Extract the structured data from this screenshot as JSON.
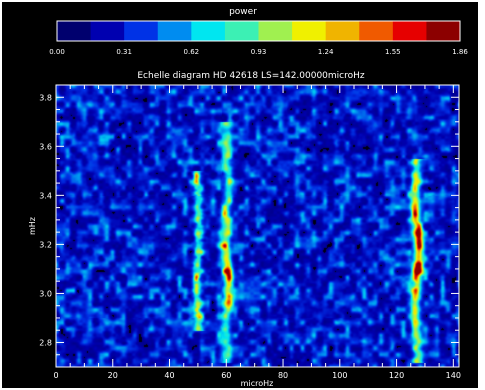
{
  "chart_data": {
    "type": "heatmap",
    "title": "Echelle diagram HD 42618 LS=142.00000microHz",
    "xlabel": "microHz",
    "ylabel": "mHz",
    "xlim": [
      0,
      142
    ],
    "ylim": [
      2.7,
      3.85
    ],
    "x_ticks": [
      "0",
      "20",
      "40",
      "60",
      "80",
      "100",
      "120",
      "140"
    ],
    "y_ticks": [
      "2.8",
      "3.0",
      "3.2",
      "3.4",
      "3.6",
      "3.8"
    ],
    "colorbar": {
      "title": "power",
      "range": [
        0.0,
        1.86
      ],
      "tick_labels": [
        "0.00",
        "0.31",
        "0.62",
        "0.93",
        "1.24",
        "1.55",
        "1.86"
      ],
      "colors": [
        "#00006e",
        "#0000b0",
        "#0032e6",
        "#008cf0",
        "#00e6f0",
        "#3cf0b4",
        "#a0f050",
        "#f0f000",
        "#f0b400",
        "#f05a00",
        "#e60000",
        "#8c0000"
      ]
    },
    "ridges": [
      {
        "x_center": 50,
        "x_width": 1.4,
        "y_range": [
          2.85,
          3.5
        ],
        "peak_power": 0.95
      },
      {
        "x_center": 60,
        "x_width": 1.7,
        "y_range": [
          2.72,
          3.7
        ],
        "peak_power": 1.3,
        "peak_y": 3.12
      },
      {
        "x_center": 127,
        "x_width": 1.7,
        "y_range": [
          2.72,
          3.55
        ],
        "peak_power": 1.65,
        "peak_y": 3.18
      }
    ],
    "background_power": 0.35,
    "grid": false
  }
}
